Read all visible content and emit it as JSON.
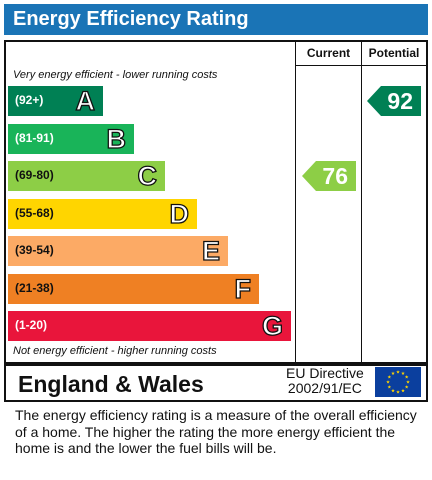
{
  "title": "Energy Efficiency Rating",
  "columns": {
    "current": "Current",
    "potential": "Potential"
  },
  "notes": {
    "top": "Very energy efficient - lower running costs",
    "bottom": "Not energy efficient - higher running costs"
  },
  "chart_data": {
    "type": "bar",
    "categories": [
      "A",
      "B",
      "C",
      "D",
      "E",
      "F",
      "G"
    ],
    "ranges": [
      "(92+)",
      "(81-91)",
      "(69-80)",
      "(55-68)",
      "(39-54)",
      "(21-38)",
      "(1-20)"
    ],
    "colors": [
      "#008054",
      "#19b459",
      "#8dce46",
      "#ffd500",
      "#fcaa65",
      "#ef8023",
      "#e9153b"
    ],
    "current": {
      "value": 76,
      "band": "C",
      "color": "#8dce46"
    },
    "potential": {
      "value": 92,
      "band": "A",
      "color": "#008054"
    }
  },
  "footer": {
    "region": "England & Wales",
    "directive_line1": "EU Directive",
    "directive_line2": "2002/91/EC",
    "flag_icon": "eu-flag-icon"
  },
  "footnote": "The energy efficiency rating is a measure of the overall efficiency of a home.  The higher the rating the more energy efficient the home is and the lower the fuel bills will be."
}
